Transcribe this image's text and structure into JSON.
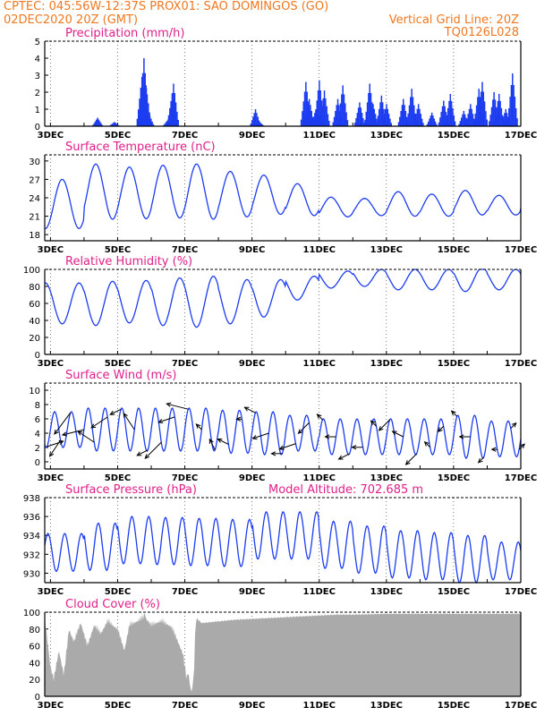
{
  "header": {
    "line1": "CPTEC:   045:56W-12:37S   PROX01: SAO DOMINGOS (GO)",
    "line2_left": "02DEC2020 20Z (GMT)",
    "line2_right": "Vertical Grid Line: 20Z",
    "line3_right": "TQ0126L028"
  },
  "colors": {
    "header": "#f07820",
    "title": "#e0208a",
    "series": "#1c3cf0",
    "wind_arrow": "#000000",
    "cloud_fill": "#aaaaaa",
    "frame": "#000000"
  },
  "chart_data": [
    {
      "id": "precip",
      "type": "bar",
      "title": "Precipitation (mm/h)",
      "ylim": [
        0,
        5
      ],
      "yticks": [
        "0",
        "1",
        "2",
        "3",
        "4",
        "5"
      ],
      "xticks": [
        "3DEC",
        "5DEC",
        "7DEC",
        "9DEC",
        "11DEC",
        "13DEC",
        "15DEC",
        "17DEC"
      ],
      "x_start_day": 2.83,
      "x_end_day": 17.0,
      "events": [
        {
          "day": 4.4,
          "value": 0.5
        },
        {
          "day": 4.9,
          "value": 0.25
        },
        {
          "day": 5.72,
          "value": 2.9
        },
        {
          "day": 5.78,
          "value": 4.0
        },
        {
          "day": 5.84,
          "value": 2.4
        },
        {
          "day": 5.92,
          "value": 0.8
        },
        {
          "day": 6.5,
          "value": 0.4
        },
        {
          "day": 6.62,
          "value": 1.9
        },
        {
          "day": 6.66,
          "value": 2.5
        },
        {
          "day": 9.1,
          "value": 1.0
        },
        {
          "day": 9.2,
          "value": 0.3
        },
        {
          "day": 10.6,
          "value": 2.6
        },
        {
          "day": 10.7,
          "value": 1.6
        },
        {
          "day": 10.9,
          "value": 1.0
        },
        {
          "day": 11.0,
          "value": 2.7
        },
        {
          "day": 11.15,
          "value": 2.1
        },
        {
          "day": 11.55,
          "value": 1.6
        },
        {
          "day": 11.7,
          "value": 2.4
        },
        {
          "day": 12.2,
          "value": 1.4
        },
        {
          "day": 12.5,
          "value": 2.5
        },
        {
          "day": 12.6,
          "value": 1.3
        },
        {
          "day": 12.85,
          "value": 1.8
        },
        {
          "day": 13.0,
          "value": 1.3
        },
        {
          "day": 13.5,
          "value": 1.6
        },
        {
          "day": 13.75,
          "value": 2.2
        },
        {
          "day": 13.95,
          "value": 1.3
        },
        {
          "day": 14.35,
          "value": 0.8
        },
        {
          "day": 14.7,
          "value": 1.5
        },
        {
          "day": 14.9,
          "value": 1.9
        },
        {
          "day": 15.3,
          "value": 0.9
        },
        {
          "day": 15.5,
          "value": 1.3
        },
        {
          "day": 15.75,
          "value": 2.2
        },
        {
          "day": 15.85,
          "value": 2.6
        },
        {
          "day": 16.2,
          "value": 2.0
        },
        {
          "day": 16.35,
          "value": 1.9
        },
        {
          "day": 16.55,
          "value": 1.0
        },
        {
          "day": 16.75,
          "value": 3.1
        }
      ]
    },
    {
      "id": "temp",
      "type": "line",
      "title": "Surface Temperature (nC)",
      "ylim": [
        17,
        31
      ],
      "yticks": [
        "18",
        "21",
        "24",
        "27",
        "30"
      ],
      "xticks": [
        "3DEC",
        "5DEC",
        "7DEC",
        "9DEC",
        "11DEC",
        "13DEC",
        "15DEC",
        "17DEC"
      ],
      "x_start_day": 2.83,
      "x_end_day": 17.0,
      "period_days": 1.0,
      "phase_day": 3.1,
      "daily_amplitude": [
        4,
        4.5,
        4.2,
        4.3,
        4.5,
        3.7,
        3.2,
        2.6,
        1.6,
        1.4,
        2.0,
        1.8,
        2.0,
        1.6,
        1.2
      ],
      "daily_mean": [
        23,
        25,
        24.8,
        25,
        25,
        24.6,
        24.5,
        23.7,
        22.5,
        22.5,
        23.0,
        22.8,
        23.2,
        22.8,
        23.0
      ]
    },
    {
      "id": "rh",
      "type": "line",
      "title": "Relative Humidity (%)",
      "ylim": [
        0,
        100
      ],
      "yticks": [
        "0",
        "20",
        "40",
        "60",
        "80",
        "100"
      ],
      "xticks": [
        "3DEC",
        "5DEC",
        "7DEC",
        "9DEC",
        "11DEC",
        "13DEC",
        "15DEC",
        "17DEC"
      ],
      "x_start_day": 2.83,
      "x_end_day": 17.0,
      "period_days": 1.0,
      "phase_day": 3.6,
      "daily_amplitude": [
        24,
        26,
        25,
        28,
        30,
        26,
        22,
        14,
        10,
        10,
        12,
        12,
        14,
        12,
        10
      ],
      "daily_mean": [
        60,
        60,
        62,
        62,
        62,
        62,
        66,
        78,
        88,
        90,
        88,
        88,
        88,
        88,
        88
      ]
    },
    {
      "id": "wind",
      "type": "line",
      "title": "Surface Wind (m/s)",
      "ylim": [
        -1,
        11
      ],
      "yticks": [
        "0",
        "2",
        "4",
        "6",
        "8",
        "10"
      ],
      "xticks": [
        "3DEC",
        "5DEC",
        "7DEC",
        "9DEC",
        "11DEC",
        "13DEC",
        "15DEC",
        "17DEC"
      ],
      "x_start_day": 2.83,
      "x_end_day": 17.0,
      "period_days": 0.5,
      "phase_day": 3.0,
      "daily_amplitude": [
        2.5,
        3,
        3,
        3,
        3,
        3,
        3,
        2.5,
        2.5,
        2.5,
        2.5,
        2.5,
        3,
        2.5,
        2.5
      ],
      "daily_mean": [
        4.5,
        4.5,
        4.5,
        4.5,
        4.5,
        4.2,
        4.0,
        4.0,
        3.5,
        3.5,
        3.5,
        3.5,
        3.5,
        3.2,
        3.2
      ],
      "arrows": [
        {
          "day": 2.9,
          "u": 3,
          "v": 1
        },
        {
          "day": 3.3,
          "u": -2,
          "v": -3
        },
        {
          "day": 3.6,
          "u": -3,
          "v": -4
        },
        {
          "day": 4.0,
          "u": -4,
          "v": -1
        },
        {
          "day": 4.3,
          "u": -3,
          "v": 2
        },
        {
          "day": 4.7,
          "u": -3,
          "v": -2
        },
        {
          "day": 5.1,
          "u": -2,
          "v": -1
        },
        {
          "day": 5.5,
          "u": -2,
          "v": 3
        },
        {
          "day": 5.9,
          "u": -2,
          "v": -1
        },
        {
          "day": 6.3,
          "u": -3,
          "v": -3
        },
        {
          "day": 6.7,
          "u": -3,
          "v": -1
        },
        {
          "day": 7.1,
          "u": -4,
          "v": 1
        },
        {
          "day": 7.5,
          "u": -1,
          "v": 1
        },
        {
          "day": 7.9,
          "u": -1,
          "v": 2
        },
        {
          "day": 8.3,
          "u": -2,
          "v": 1
        },
        {
          "day": 8.7,
          "u": -1,
          "v": 0
        },
        {
          "day": 9.1,
          "u": -2,
          "v": 1
        },
        {
          "day": 9.5,
          "u": -3,
          "v": -1
        },
        {
          "day": 9.9,
          "u": -2,
          "v": 0
        },
        {
          "day": 10.3,
          "u": -3,
          "v": -1
        },
        {
          "day": 10.7,
          "u": -2,
          "v": -2
        },
        {
          "day": 11.1,
          "u": -1,
          "v": 1
        },
        {
          "day": 11.5,
          "u": -2,
          "v": 0
        },
        {
          "day": 11.9,
          "u": -2,
          "v": -1
        },
        {
          "day": 12.3,
          "u": -2,
          "v": 0
        },
        {
          "day": 12.7,
          "u": -1,
          "v": 1
        },
        {
          "day": 13.1,
          "u": -2,
          "v": -2
        },
        {
          "day": 13.5,
          "u": -2,
          "v": 1
        },
        {
          "day": 13.9,
          "u": -2,
          "v": -2
        },
        {
          "day": 14.3,
          "u": -1,
          "v": 1
        },
        {
          "day": 14.7,
          "u": -1,
          "v": -1
        },
        {
          "day": 15.1,
          "u": -1,
          "v": 1
        },
        {
          "day": 15.5,
          "u": -2,
          "v": 0
        },
        {
          "day": 15.9,
          "u": -1,
          "v": -1
        },
        {
          "day": 16.3,
          "u": -1,
          "v": 0
        },
        {
          "day": 16.7,
          "u": 1,
          "v": 1
        },
        {
          "day": 16.95,
          "u": 1,
          "v": 1
        }
      ]
    },
    {
      "id": "pressure",
      "type": "line",
      "title": "Surface Pressure (hPa)",
      "annotation": "Model Altitude: 702.685 m",
      "ylim": [
        929,
        938
      ],
      "yticks": [
        "930",
        "932",
        "934",
        "936",
        "938"
      ],
      "xticks": [
        "3DEC",
        "5DEC",
        "7DEC",
        "9DEC",
        "11DEC",
        "13DEC",
        "15DEC",
        "17DEC"
      ],
      "x_start_day": 2.83,
      "x_end_day": 17.0,
      "period_days": 0.5,
      "phase_day": 3.3,
      "daily_amplitude": [
        2,
        2.5,
        2.5,
        2.5,
        2.5,
        2.5,
        2.5,
        2.5,
        2.5,
        2.5,
        2.5,
        2.5,
        2.5,
        2.0,
        2.0
      ],
      "daily_mean": [
        932.2,
        932.8,
        933.5,
        933.4,
        933.3,
        933.2,
        934.0,
        934.0,
        933.0,
        932.5,
        932.0,
        931.8,
        931.5,
        931.3,
        931.2
      ]
    },
    {
      "id": "cloud",
      "type": "area",
      "title": "Cloud Cover (%)",
      "ylim": [
        0,
        100
      ],
      "yticks": [
        "0",
        "20",
        "40",
        "60",
        "80",
        "100"
      ],
      "xticks": [
        "3DEC",
        "5DEC",
        "7DEC",
        "9DEC",
        "11DEC",
        "13DEC",
        "15DEC",
        "17DEC"
      ],
      "x_start_day": 2.83,
      "x_end_day": 17.0,
      "profile": [
        {
          "day": 2.83,
          "value": 100
        },
        {
          "day": 3.0,
          "value": 40
        },
        {
          "day": 3.1,
          "value": 25
        },
        {
          "day": 3.25,
          "value": 60
        },
        {
          "day": 3.4,
          "value": 30
        },
        {
          "day": 3.55,
          "value": 85
        },
        {
          "day": 3.7,
          "value": 70
        },
        {
          "day": 3.9,
          "value": 93
        },
        {
          "day": 4.1,
          "value": 65
        },
        {
          "day": 4.3,
          "value": 90
        },
        {
          "day": 4.5,
          "value": 80
        },
        {
          "day": 4.7,
          "value": 95
        },
        {
          "day": 5.0,
          "value": 85
        },
        {
          "day": 5.2,
          "value": 60
        },
        {
          "day": 5.35,
          "value": 90
        },
        {
          "day": 5.6,
          "value": 95
        },
        {
          "day": 5.8,
          "value": 100
        },
        {
          "day": 6.0,
          "value": 90
        },
        {
          "day": 6.3,
          "value": 95
        },
        {
          "day": 6.6,
          "value": 88
        },
        {
          "day": 6.8,
          "value": 70
        },
        {
          "day": 6.95,
          "value": 55
        },
        {
          "day": 7.0,
          "value": 40
        },
        {
          "day": 7.05,
          "value": 25
        },
        {
          "day": 7.1,
          "value": 35
        },
        {
          "day": 7.15,
          "value": 20
        },
        {
          "day": 7.2,
          "value": 10
        },
        {
          "day": 7.27,
          "value": 30
        },
        {
          "day": 7.32,
          "value": 95
        },
        {
          "day": 7.5,
          "value": 88
        },
        {
          "day": 8.0,
          "value": 90
        },
        {
          "day": 8.5,
          "value": 92
        },
        {
          "day": 9.0,
          "value": 93
        },
        {
          "day": 9.5,
          "value": 94
        },
        {
          "day": 10.0,
          "value": 95
        },
        {
          "day": 10.5,
          "value": 96
        },
        {
          "day": 11.0,
          "value": 97
        },
        {
          "day": 11.5,
          "value": 98
        },
        {
          "day": 12.0,
          "value": 98
        },
        {
          "day": 13.0,
          "value": 99
        },
        {
          "day": 14.0,
          "value": 99
        },
        {
          "day": 15.0,
          "value": 99
        },
        {
          "day": 16.0,
          "value": 99
        },
        {
          "day": 17.0,
          "value": 99
        }
      ]
    }
  ]
}
